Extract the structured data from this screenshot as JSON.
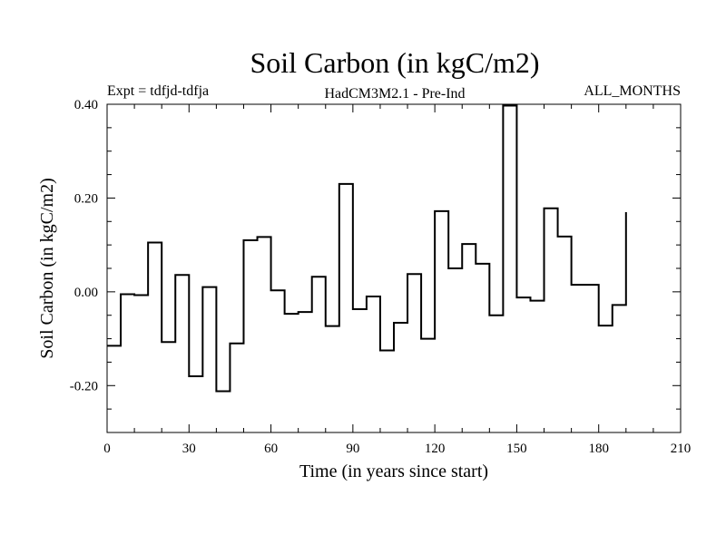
{
  "chart_data": {
    "type": "line",
    "style": "step",
    "title": "Soil Carbon (in kgC/m2)",
    "subtitle_left": "Expt = tdfjd-tdfja",
    "subtitle_center": "HadCM3M2.1 - Pre-Ind",
    "subtitle_right": "ALL_MONTHS",
    "xlabel": "Time (in years since start)",
    "ylabel": "Soil Carbon (in kgC/m2)",
    "xlim": [
      0,
      210
    ],
    "ylim": [
      -0.3,
      0.4
    ],
    "xticks": [
      0,
      30,
      60,
      90,
      120,
      150,
      180,
      210
    ],
    "xtick_labels": [
      "0",
      "30",
      "60",
      "90",
      "120",
      "150",
      "180",
      "210"
    ],
    "yticks": [
      -0.2,
      0.0,
      0.2,
      0.4
    ],
    "ytick_labels": [
      "-0.20",
      "0.00",
      "0.20",
      "0.40"
    ],
    "line_color": "#000000",
    "series": [
      {
        "name": "Soil Carbon",
        "x": [
          0,
          5,
          10,
          15,
          20,
          25,
          30,
          35,
          40,
          45,
          50,
          55,
          60,
          65,
          70,
          75,
          80,
          85,
          90,
          95,
          100,
          105,
          110,
          115,
          120,
          125,
          130,
          135,
          140,
          145,
          150,
          155,
          160,
          165,
          170,
          175,
          180,
          185,
          190
        ],
        "values": [
          -0.115,
          -0.005,
          -0.007,
          0.105,
          -0.107,
          0.036,
          -0.18,
          0.01,
          -0.212,
          -0.11,
          0.11,
          0.117,
          0.003,
          -0.047,
          -0.043,
          0.032,
          -0.073,
          0.23,
          -0.037,
          -0.01,
          -0.125,
          -0.066,
          0.038,
          -0.1,
          0.172,
          0.05,
          0.102,
          0.06,
          -0.05,
          0.397,
          -0.012,
          -0.019,
          0.178,
          0.118,
          0.015,
          0.015,
          -0.072,
          -0.028,
          0.17
        ]
      }
    ]
  }
}
